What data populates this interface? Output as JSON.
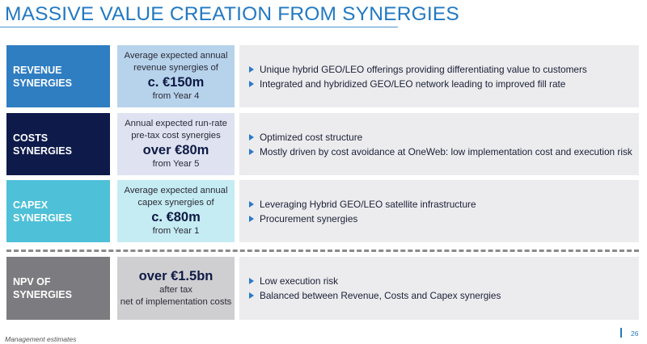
{
  "title": "MASSIVE VALUE CREATION FROM SYNERGIES",
  "colors": {
    "title_blue": "#2279c2",
    "revenue_label_bg": "#2f7ec2",
    "revenue_mid_bg": "#b7d3ec",
    "costs_label_bg": "#0d1a4a",
    "costs_mid_bg": "#dfe3f1",
    "capex_label_bg": "#4ec0d8",
    "capex_mid_bg": "#c6ecf3",
    "npv_label_bg": "#7c7c80",
    "npv_mid_bg": "#cfcfd2",
    "detail_bg": "#ececee",
    "bullet_marker": "#2979c9"
  },
  "rows": [
    {
      "label_line1": "REVENUE",
      "label_line2": "SYNERGIES",
      "mid_pre1": "Average expected annual",
      "mid_pre2": "revenue synergies of",
      "mid_big": "c. €150m",
      "mid_post1": "from Year 4",
      "mid_post2": "",
      "bullets": [
        "Unique hybrid GEO/LEO offerings providing differentiating value to customers",
        "Integrated and hybridized GEO/LEO network leading to improved fill rate"
      ]
    },
    {
      "label_line1": "COSTS",
      "label_line2": "SYNERGIES",
      "mid_pre1": "Annual expected run-rate",
      "mid_pre2": "pre-tax cost synergies",
      "mid_big": "over €80m",
      "mid_post1": "from Year 5",
      "mid_post2": "",
      "bullets": [
        "Optimized cost structure",
        "Mostly driven by cost avoidance at OneWeb: low implementation cost and execution risk"
      ]
    },
    {
      "label_line1": "CAPEX",
      "label_line2": "SYNERGIES",
      "mid_pre1": "Average expected annual",
      "mid_pre2": "capex synergies of",
      "mid_big": "c. €80m",
      "mid_post1": "from Year 1",
      "mid_post2": "",
      "bullets": [
        "Leveraging Hybrid GEO/LEO satellite infrastructure",
        "Procurement synergies"
      ]
    },
    {
      "label_line1": "NPV OF",
      "label_line2": "SYNERGIES",
      "mid_pre1": "",
      "mid_pre2": "",
      "mid_big": "over €1.5bn",
      "mid_post1": "after tax",
      "mid_post2": "net of implementation costs",
      "bullets": [
        "Low execution risk",
        "Balanced between Revenue, Costs and Capex synergies"
      ]
    }
  ],
  "footnote": "Management estimates",
  "page_number": "26"
}
